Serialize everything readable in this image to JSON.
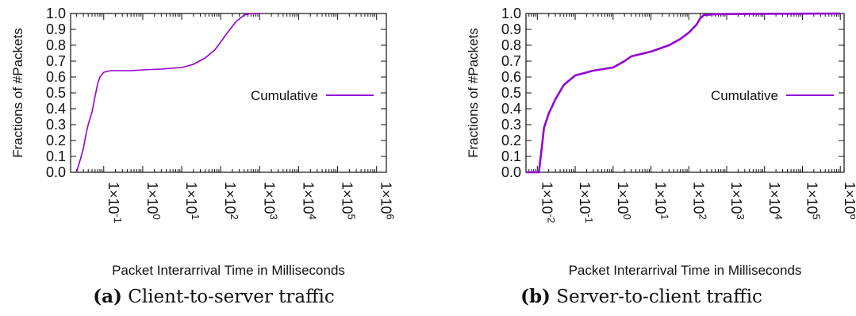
{
  "chart_data": [
    {
      "type": "line",
      "caption_tag": "(a)",
      "caption_text": "Client-to-server traffic",
      "xlabel": "Packet Interarrival Time in Milliseconds",
      "ylabel": "Fractions of #Packets",
      "xscale": "log",
      "xlim_exp": [
        -1.85,
        6.25
      ],
      "ylim": [
        0,
        1
      ],
      "yticks": [
        "0.0",
        "0.1",
        "0.2",
        "0.3",
        "0.4",
        "0.5",
        "0.6",
        "0.7",
        "0.8",
        "0.9",
        "1.0"
      ],
      "xticks": [
        {
          "exp": -1,
          "base": "1×10",
          "sup": "-1"
        },
        {
          "exp": 0,
          "base": "1×10",
          "sup": "0"
        },
        {
          "exp": 1,
          "base": "1×10",
          "sup": "1"
        },
        {
          "exp": 2,
          "base": "1×10",
          "sup": "2"
        },
        {
          "exp": 3,
          "base": "1×10",
          "sup": "3"
        },
        {
          "exp": 4,
          "base": "1×10",
          "sup": "4"
        },
        {
          "exp": 5,
          "base": "1×10",
          "sup": "5"
        },
        {
          "exp": 6,
          "base": "1×10",
          "sup": "6"
        }
      ],
      "legend_position": "right",
      "series": [
        {
          "name": "Cumulative",
          "color": "#9400d3",
          "points": [
            [
              0.02,
              0.0
            ],
            [
              0.025,
              0.08
            ],
            [
              0.03,
              0.15
            ],
            [
              0.035,
              0.24
            ],
            [
              0.04,
              0.3
            ],
            [
              0.05,
              0.38
            ],
            [
              0.06,
              0.48
            ],
            [
              0.07,
              0.56
            ],
            [
              0.08,
              0.6
            ],
            [
              0.1,
              0.63
            ],
            [
              0.15,
              0.64
            ],
            [
              0.5,
              0.64
            ],
            [
              1.0,
              0.645
            ],
            [
              3.0,
              0.65
            ],
            [
              10.0,
              0.66
            ],
            [
              20.0,
              0.68
            ],
            [
              40.0,
              0.72
            ],
            [
              70.0,
              0.77
            ],
            [
              100.0,
              0.82
            ],
            [
              150.0,
              0.88
            ],
            [
              250.0,
              0.95
            ],
            [
              400.0,
              0.99
            ],
            [
              600.0,
              1.0
            ],
            [
              1000.0,
              1.0
            ]
          ]
        }
      ]
    },
    {
      "type": "line",
      "caption_tag": "(b)",
      "caption_text": "Server-to-client traffic",
      "xlabel": "Packet Interarrival Time in Milliseconds",
      "ylabel": "Fractions of #Packets",
      "xscale": "log",
      "xlim_exp": [
        -2.3,
        6.1
      ],
      "ylim": [
        0,
        1
      ],
      "yticks": [
        "0.0",
        "0.1",
        "0.2",
        "0.3",
        "0.4",
        "0.5",
        "0.6",
        "0.7",
        "0.8",
        "0.9",
        "1.0"
      ],
      "xticks": [
        {
          "exp": -2,
          "base": "1×10",
          "sup": "-2"
        },
        {
          "exp": -1,
          "base": "1×10",
          "sup": "-1"
        },
        {
          "exp": 0,
          "base": "1×10",
          "sup": "0"
        },
        {
          "exp": 1,
          "base": "1×10",
          "sup": "1"
        },
        {
          "exp": 2,
          "base": "1×10",
          "sup": "2"
        },
        {
          "exp": 3,
          "base": "1×10",
          "sup": "3"
        },
        {
          "exp": 4,
          "base": "1×10",
          "sup": "4"
        },
        {
          "exp": 5,
          "base": "1×10",
          "sup": "5"
        },
        {
          "exp": 6,
          "base": "1×10",
          "sup": "6"
        }
      ],
      "legend_position": "right",
      "series": [
        {
          "name": "Cumulative",
          "color": "#9400d3",
          "points": [
            [
              0.005,
              0.0
            ],
            [
              0.011,
              0.0
            ],
            [
              0.013,
              0.15
            ],
            [
              0.015,
              0.28
            ],
            [
              0.02,
              0.37
            ],
            [
              0.03,
              0.46
            ],
            [
              0.05,
              0.55
            ],
            [
              0.1,
              0.61
            ],
            [
              0.3,
              0.64
            ],
            [
              1.0,
              0.66
            ],
            [
              2.0,
              0.7
            ],
            [
              3.0,
              0.73
            ],
            [
              10.0,
              0.76
            ],
            [
              30.0,
              0.8
            ],
            [
              60.0,
              0.84
            ],
            [
              100.0,
              0.88
            ],
            [
              160.0,
              0.93
            ],
            [
              200.0,
              0.97
            ],
            [
              250.0,
              0.99
            ],
            [
              500.0,
              0.995
            ],
            [
              5000.0,
              0.998
            ],
            [
              1000000.0,
              1.0
            ]
          ]
        }
      ]
    }
  ]
}
